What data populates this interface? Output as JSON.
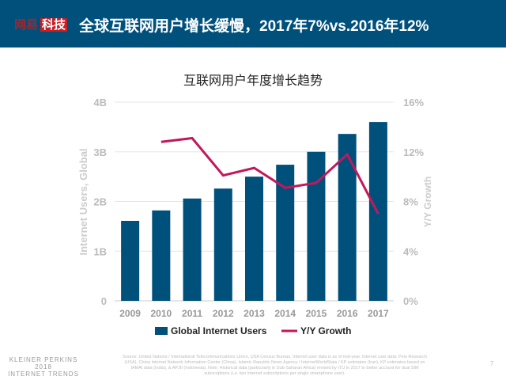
{
  "header": {
    "logo_part1": "网易",
    "logo_part2": "科技",
    "title": "全球互联网用户增长缓慢，2017年7%vs.2016年12%"
  },
  "chart_data": {
    "type": "bar+line",
    "title": "互联网用户年度增长趋势",
    "categories": [
      "2009",
      "2010",
      "2011",
      "2012",
      "2013",
      "2014",
      "2015",
      "2016",
      "2017"
    ],
    "series": [
      {
        "name": "Global Internet Users",
        "type": "bar",
        "axis": "left",
        "color": "#00507c",
        "values": [
          1.61,
          1.82,
          2.06,
          2.26,
          2.5,
          2.74,
          3.0,
          3.36,
          3.6
        ]
      },
      {
        "name": "Y/Y Growth",
        "type": "line",
        "axis": "right",
        "color": "#c2185b",
        "values": [
          null,
          12.8,
          13.1,
          10.1,
          10.7,
          9.1,
          9.5,
          11.8,
          7.0
        ]
      }
    ],
    "ylabel": "Internet Users, Global",
    "y2label": "Y/Y Growth",
    "ylim": [
      0,
      4
    ],
    "y2lim": [
      0,
      16
    ],
    "yticks": [
      "0",
      "1B",
      "2B",
      "3B",
      "4B"
    ],
    "y2ticks": [
      "0%",
      "4%",
      "8%",
      "12%",
      "16%"
    ],
    "grid": true,
    "legend": "bottom"
  },
  "footer": {
    "brand_line1": "KLEINER PERKINS",
    "brand_line2": "2018",
    "brand_line3": "INTERNET TRENDS",
    "source": "Source: United Nations / International Telecommunications Union, USA Census Bureau. Internet user data is as of mid-year. Internet user data: Pew Research (USA), China Internet Network Information Center (China), Islamic Republic News Agency / InternetWorldStats / KP estimates (Iran), KP estimates based on IAMAI data (India), & APJII (Indonesia). Note: Historical data (particularly in Sub-Saharan Africa) revised by ITU in 2017 to better account for dual SIM subscriptions (i.e. two Internet subscriptions per single smartphone user).",
    "page": "7"
  }
}
